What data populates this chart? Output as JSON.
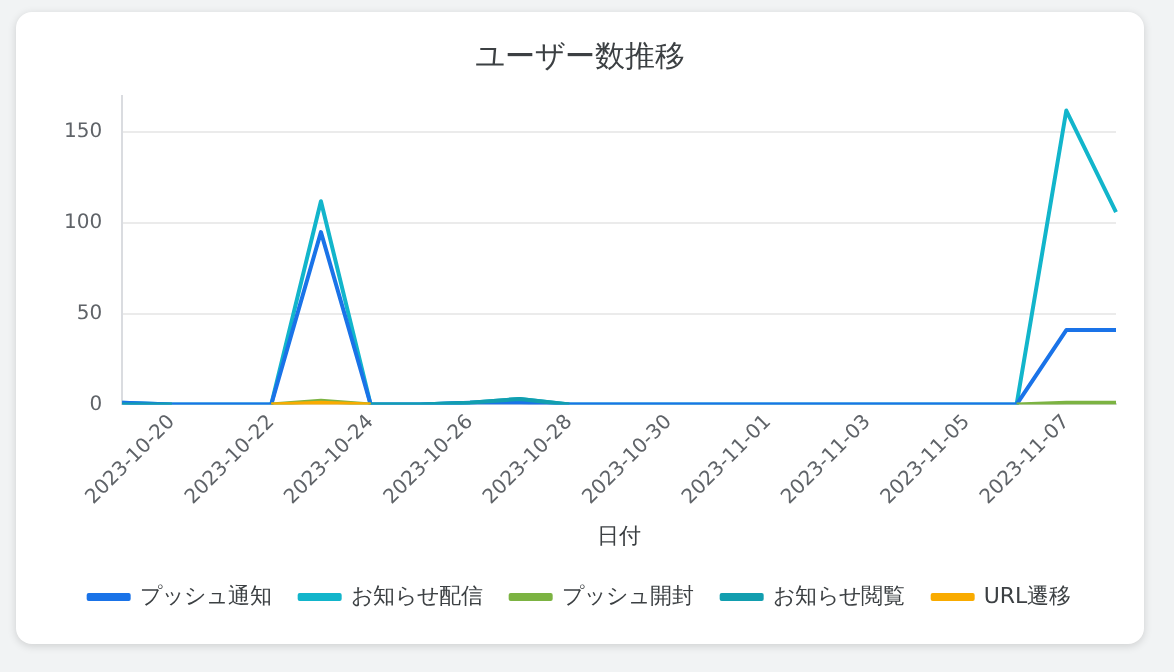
{
  "chart_data": {
    "type": "line",
    "title": "ユーザー数推移",
    "xlabel": "日付",
    "categories": [
      null,
      "2023-10-20",
      null,
      "2023-10-22",
      null,
      "2023-10-24",
      null,
      "2023-10-26",
      null,
      "2023-10-28",
      null,
      "2023-10-30",
      null,
      "2023-11-01",
      null,
      "2023-11-03",
      null,
      "2023-11-05",
      null,
      "2023-11-07",
      null
    ],
    "series": [
      {
        "name": "プッシュ通知",
        "color": "#1a73e8",
        "values": [
          1,
          0,
          0,
          0,
          95,
          0,
          0,
          1,
          1,
          0,
          0,
          0,
          0,
          0,
          0,
          0,
          0,
          0,
          0,
          41,
          41
        ]
      },
      {
        "name": "お知らせ配信",
        "color": "#12b5cb",
        "values": [
          1,
          0,
          0,
          0,
          112,
          0,
          0,
          1,
          3,
          0,
          0,
          0,
          0,
          0,
          0,
          0,
          0,
          0,
          0,
          162,
          106
        ]
      },
      {
        "name": "プッシュ開封",
        "color": "#7cb342",
        "values": [
          null,
          null,
          null,
          0,
          2,
          0,
          null,
          null,
          null,
          null,
          null,
          null,
          null,
          null,
          null,
          null,
          null,
          null,
          0,
          1,
          1
        ]
      },
      {
        "name": "お知らせ閲覧",
        "color": "#129eaf",
        "values": [
          0,
          0,
          null,
          null,
          null,
          0,
          0,
          1,
          3,
          0,
          null,
          null,
          null,
          null,
          null,
          null,
          null,
          null,
          null,
          null,
          null
        ]
      },
      {
        "name": "URL遷移",
        "color": "#f9ab00",
        "values": [
          null,
          null,
          null,
          0,
          1,
          0,
          null,
          null,
          null,
          null,
          null,
          null,
          null,
          null,
          null,
          null,
          null,
          null,
          null,
          null,
          null
        ]
      }
    ],
    "ylim": [
      0,
      170
    ],
    "yticks": [
      0,
      50,
      100,
      150
    ],
    "grid": "y",
    "legend": "bottom",
    "marker": "none",
    "line_style": "solid"
  }
}
